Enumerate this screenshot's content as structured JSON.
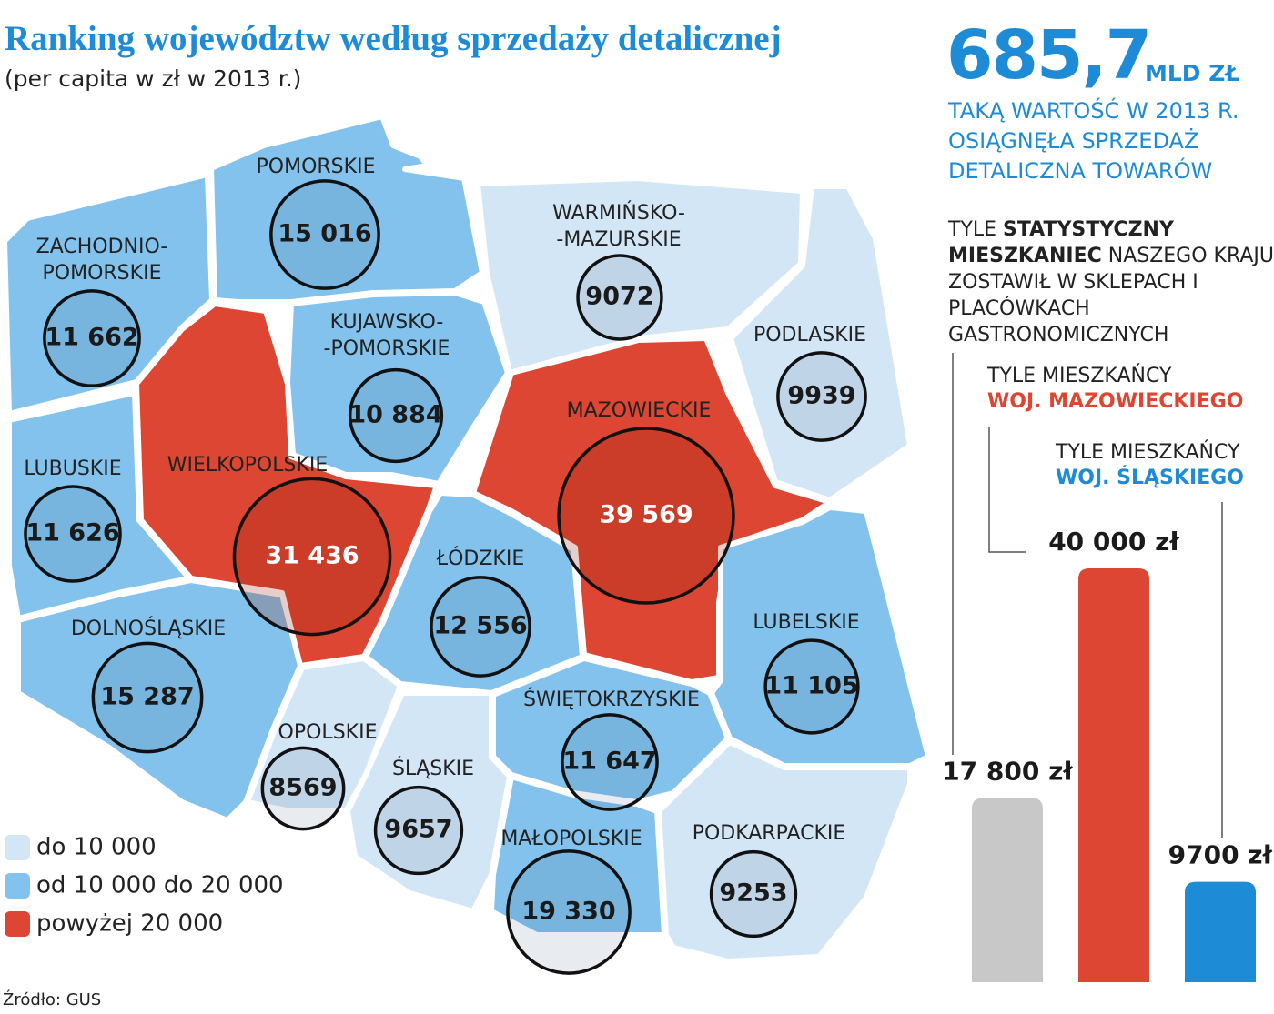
{
  "title": "Ranking województw według sprzedaży detalicznej",
  "subtitle": "(per capita w zł w 2013 r.)",
  "regions": [
    {
      "name": [
        "ZACHODNIO-",
        "POMORSKIE"
      ],
      "value": 11662,
      "value_label": "11 662",
      "level": 1
    },
    {
      "name": [
        "POMORSKIE"
      ],
      "value": 15016,
      "value_label": "15 016",
      "level": 1
    },
    {
      "name": [
        "WARMIŃSKO-",
        "-MAZURSKIE"
      ],
      "value": 9072,
      "value_label": "9072",
      "level": 0
    },
    {
      "name": [
        "PODLASKIE"
      ],
      "value": 9939,
      "value_label": "9939",
      "level": 0
    },
    {
      "name": [
        "KUJAWSKO-",
        "-POMORSKIE"
      ],
      "value": 10884,
      "value_label": "10 884",
      "level": 1
    },
    {
      "name": [
        "WIELKOPOLSKIE"
      ],
      "value": 31436,
      "value_label": "31 436",
      "level": 2
    },
    {
      "name": [
        "MAZOWIECKIE"
      ],
      "value": 39569,
      "value_label": "39 569",
      "level": 2
    },
    {
      "name": [
        "LUBUSKIE"
      ],
      "value": 11626,
      "value_label": "11 626",
      "level": 1
    },
    {
      "name": [
        "DOLNOŚLĄSKIE"
      ],
      "value": 15287,
      "value_label": "15 287",
      "level": 1
    },
    {
      "name": [
        "ŁÓDZKIE"
      ],
      "value": 12556,
      "value_label": "12 556",
      "level": 1
    },
    {
      "name": [
        "OPOLSKIE"
      ],
      "value": 8569,
      "value_label": "8569",
      "level": 0
    },
    {
      "name": [
        "LUBELSKIE"
      ],
      "value": 11105,
      "value_label": "11 105",
      "level": 1
    },
    {
      "name": [
        "ŚWIĘTOKRZYSKIE"
      ],
      "value": 11647,
      "value_label": "11 647",
      "level": 1
    },
    {
      "name": [
        "ŚLĄSKIE"
      ],
      "value": 9657,
      "value_label": "9657",
      "level": 0
    },
    {
      "name": [
        "MAŁOPOLSKIE"
      ],
      "value": 19330,
      "value_label": "19 330",
      "level": 1
    },
    {
      "name": [
        "PODKARPACKIE"
      ],
      "value": 9253,
      "value_label": "9253",
      "level": 0
    }
  ],
  "legend": [
    {
      "label": "do 10 000",
      "color": "#d3e6f6"
    },
    {
      "label": "od 10 000 do 20 000",
      "color": "#82c2ec"
    },
    {
      "label": "powyżej 20 000",
      "color": "#dc4632"
    }
  ],
  "highlight": {
    "value": "685,7",
    "unit": "MLD ZŁ",
    "text": [
      "TAKĄ WARTOŚĆ W 2013 R.",
      "OSIĄGNĘŁA SPRZEDAŻ",
      "DETALICZNA TOWARÓW"
    ]
  },
  "intro": [
    "TYLE ",
    "STATYSTYCZNY MIESZKANIEC",
    " NASZEGO KRAJU ZOSTAWIŁ W SKLEPACH I PLACÓWKACH GASTRONOMICZNYCH"
  ],
  "bars": [
    {
      "value": 17800,
      "label": "17 800 zł",
      "color": "#c8c8c8"
    },
    {
      "caption": [
        "TYLE MIESZKAŃCY",
        "WOJ. MAZOWIECKIEGO"
      ],
      "value": 40000,
      "label": "40 000 zł",
      "color": "#dc4632"
    },
    {
      "caption": [
        "TYLE MIESZKAŃCY",
        "WOJ. ŚLĄSKIEGO"
      ],
      "value": 9700,
      "label": "9700 zł",
      "color": "#1e8bd6"
    }
  ],
  "source": "Źródło: GUS"
}
